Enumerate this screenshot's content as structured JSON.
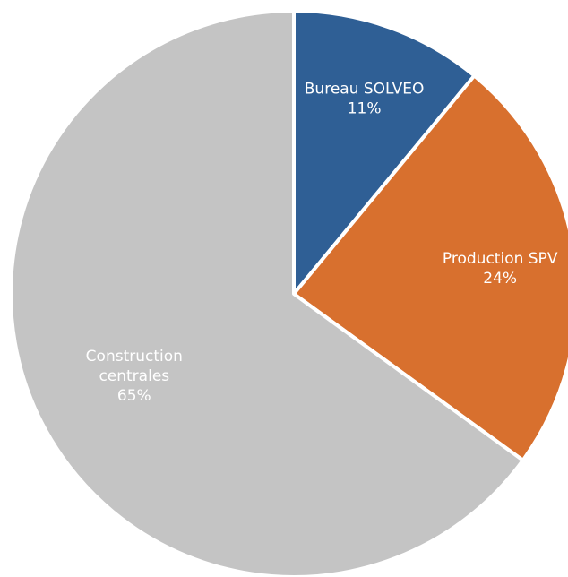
{
  "chart_data": {
    "type": "pie",
    "title": "",
    "start_angle_deg": 0,
    "direction": "clockwise",
    "legend": "none",
    "slices": [
      {
        "label": [
          "Bureau SOLVEO"
        ],
        "percent_label": "11%",
        "value": 11,
        "color": "#2f5f95"
      },
      {
        "label": [
          "Production SPV"
        ],
        "percent_label": "24%",
        "value": 24,
        "color": "#d8702e"
      },
      {
        "label": [
          "Construction",
          "centrales"
        ],
        "percent_label": "65%",
        "value": 65,
        "color": "#c4c4c4"
      }
    ]
  }
}
